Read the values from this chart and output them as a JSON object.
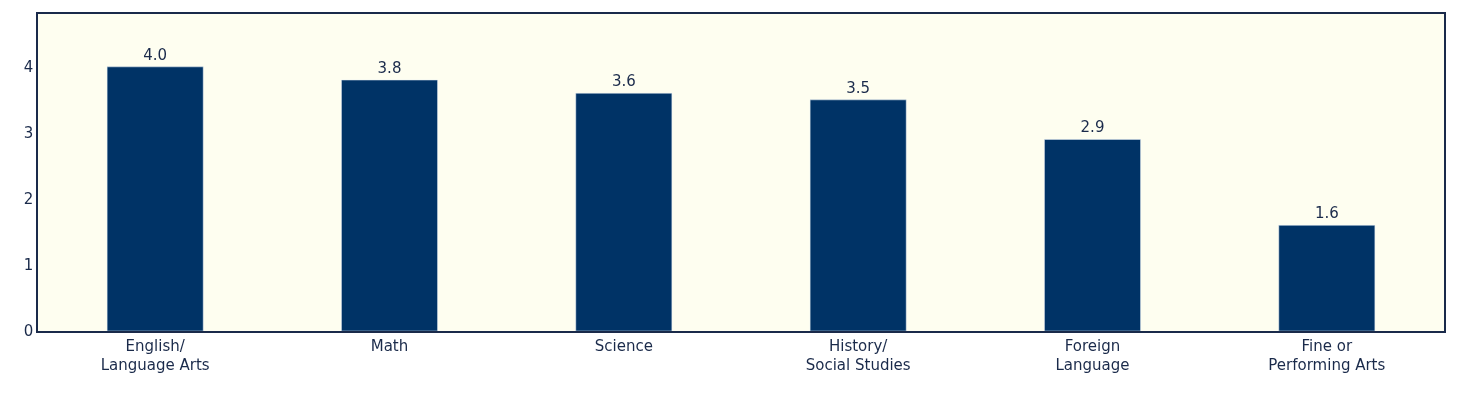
{
  "chart_data": {
    "type": "bar",
    "categories": [
      "English/\nLanguage Arts",
      "Math",
      "Science",
      "History/\nSocial Studies",
      "Foreign\nLanguage",
      "Fine or\nPerforming Arts"
    ],
    "values": [
      4.0,
      3.8,
      3.6,
      3.5,
      2.9,
      1.6
    ],
    "value_labels": [
      "4.0",
      "3.8",
      "3.6",
      "3.5",
      "2.9",
      "1.6"
    ],
    "color": "#003366",
    "ylim": [
      0,
      4.8
    ],
    "yticks": [
      0,
      1,
      2,
      3,
      4
    ],
    "grid": false
  }
}
